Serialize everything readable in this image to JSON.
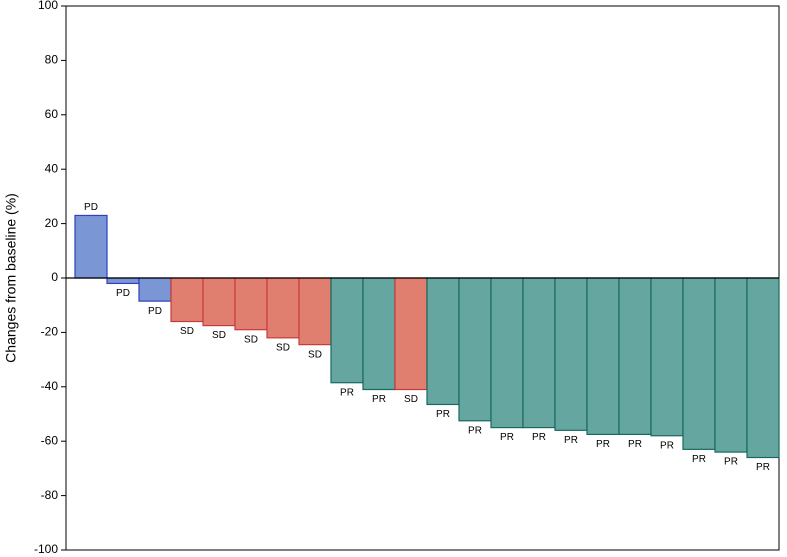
{
  "chart_data": {
    "type": "bar",
    "y_label": "Changes from baseline (%)",
    "categories": [
      "PD",
      "PD",
      "PD",
      "SD",
      "SD",
      "SD",
      "SD",
      "SD",
      "PR",
      "PR",
      "SD",
      "PR",
      "PR",
      "PR",
      "PR",
      "PR",
      "PR",
      "PR",
      "PR",
      "PR",
      "PR",
      "PR"
    ],
    "values": [
      23,
      -2,
      -8.5,
      -16,
      -17.5,
      -19,
      -22,
      -24.5,
      -38.5,
      -41,
      -41,
      -46.5,
      -52.5,
      -55,
      -55,
      -56,
      -57.5,
      -57.5,
      -58,
      -63,
      -64,
      -66
    ],
    "colors": [
      "#7b96d4",
      "#7b96d4",
      "#7b96d4",
      "#e07f70",
      "#e07f70",
      "#e07f70",
      "#e07f70",
      "#e07f70",
      "#65a7a0",
      "#65a7a0",
      "#e07f70",
      "#65a7a0",
      "#65a7a0",
      "#65a7a0",
      "#65a7a0",
      "#65a7a0",
      "#65a7a0",
      "#65a7a0",
      "#65a7a0",
      "#65a7a0",
      "#65a7a0",
      "#65a7a0"
    ],
    "edge_colors": [
      "#2f3fbf",
      "#2f3fbf",
      "#2f3fbf",
      "#c83a3a",
      "#c83a3a",
      "#c83a3a",
      "#c83a3a",
      "#c83a3a",
      "#17695f",
      "#17695f",
      "#c83a3a",
      "#17695f",
      "#17695f",
      "#17695f",
      "#17695f",
      "#17695f",
      "#17695f",
      "#17695f",
      "#17695f",
      "#17695f",
      "#17695f",
      "#17695f"
    ],
    "ylim": [
      -100,
      100
    ],
    "yticks": [
      -100,
      -80,
      -60,
      -40,
      -20,
      0,
      20,
      40,
      60,
      80,
      100
    ],
    "grid": false
  }
}
